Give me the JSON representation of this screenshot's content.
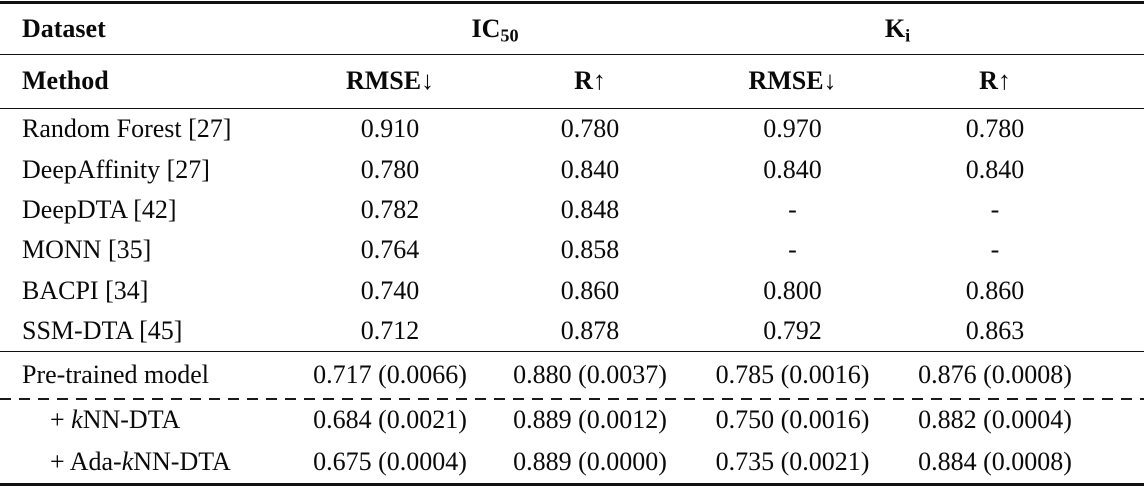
{
  "table": {
    "header": {
      "dataset_label": "Dataset",
      "method_label": "Method",
      "groups": [
        {
          "base": "IC",
          "sub": "50"
        },
        {
          "base": "K",
          "sub": "i"
        }
      ],
      "metrics": [
        "RMSE↓",
        "R↑",
        "RMSE↓",
        "R↑"
      ]
    },
    "baseline_rows": [
      {
        "method": "Random Forest [27]",
        "values": [
          "0.910",
          "0.780",
          "0.970",
          "0.780"
        ]
      },
      {
        "method": "DeepAffinity [27]",
        "values": [
          "0.780",
          "0.840",
          "0.840",
          "0.840"
        ]
      },
      {
        "method": "DeepDTA [42]",
        "values": [
          "0.782",
          "0.848",
          "-",
          "-"
        ]
      },
      {
        "method": "MONN [35]",
        "values": [
          "0.764",
          "0.858",
          "-",
          "-"
        ]
      },
      {
        "method": "BACPI [34]",
        "values": [
          "0.740",
          "0.860",
          "0.800",
          "0.860"
        ]
      },
      {
        "method": "SSM-DTA [45]",
        "values": [
          "0.712",
          "0.878",
          "0.792",
          "0.863"
        ]
      }
    ],
    "ours_rows": [
      {
        "method_pre": "Pre-trained model",
        "method_k": "",
        "method_post": "",
        "values": [
          "0.717 (0.0066)",
          "0.880 (0.0037)",
          "0.785 (0.0016)",
          "0.876 (0.0008)"
        ]
      },
      {
        "method_pre": "+ ",
        "method_k": "k",
        "method_post": "NN-DTA",
        "values": [
          "0.684 (0.0021)",
          "0.889 (0.0012)",
          "0.750 (0.0016)",
          "0.882 (0.0004)"
        ]
      },
      {
        "method_pre": "+ Ada-",
        "method_k": "k",
        "method_post": "NN-DTA",
        "values": [
          "0.675 (0.0004)",
          "0.889 (0.0000)",
          "0.735 (0.0021)",
          "0.884 (0.0008)"
        ]
      }
    ],
    "colors": {
      "text": "#0a0a0a",
      "background": "#ffffff",
      "rule": "#111111"
    }
  }
}
